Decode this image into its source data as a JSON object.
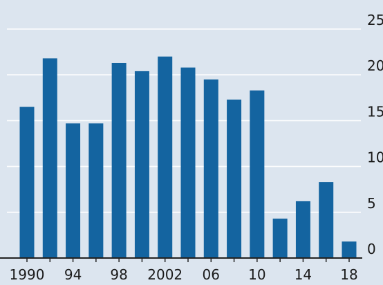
{
  "colors": {
    "background": "#dce5ef",
    "bar": "#1464a0",
    "grid": "#ffffff",
    "axis": "#222222",
    "text": "#1a1a1a"
  },
  "chart_data": {
    "type": "bar",
    "x": [
      1990,
      1992,
      1994,
      1996,
      1998,
      2000,
      2002,
      2004,
      2006,
      2008,
      2010,
      2012,
      2014,
      2016,
      2018
    ],
    "values": [
      16.5,
      21.8,
      14.7,
      14.7,
      21.3,
      20.4,
      22.0,
      20.8,
      19.5,
      17.3,
      18.3,
      4.3,
      6.2,
      8.3,
      1.8
    ],
    "x_tick_labels": [
      {
        "x": 1990,
        "label": "1990"
      },
      {
        "x": 1994,
        "label": "94"
      },
      {
        "x": 1998,
        "label": "98"
      },
      {
        "x": 2002,
        "label": "2002"
      },
      {
        "x": 2006,
        "label": "06"
      },
      {
        "x": 2010,
        "label": "10"
      },
      {
        "x": 2014,
        "label": "14"
      },
      {
        "x": 2018,
        "label": "18"
      }
    ],
    "y_ticks": [
      "0",
      "5",
      "10",
      "15",
      "20",
      "25"
    ],
    "ylim": [
      0,
      25
    ],
    "y_axis_position": "right",
    "grid": true
  }
}
